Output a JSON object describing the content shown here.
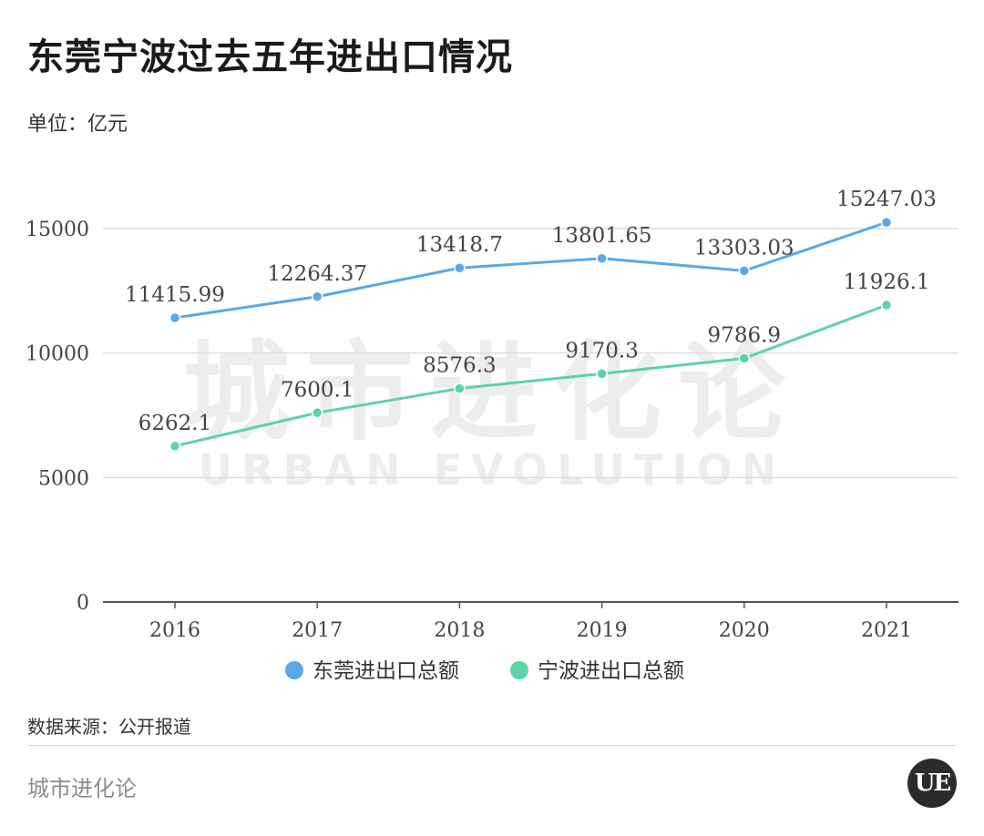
{
  "title": "东莞宁波过去五年进出口情况",
  "unit_label": "单位：亿元",
  "watermark": {
    "cn": "城市进化论",
    "en": "URBAN EVOLUTION"
  },
  "source_label": "数据来源：公开报道",
  "brand": "城市进化论",
  "logo_text": "UE",
  "colors": {
    "dongguan": "#5BA8E5",
    "ningbo": "#5DD3A6",
    "grid": "#dddddd",
    "axis": "#555555"
  },
  "chart_data": {
    "type": "line",
    "title": "东莞宁波过去五年进出口情况",
    "xlabel": "",
    "ylabel": "单位：亿元",
    "categories": [
      "2016",
      "2017",
      "2018",
      "2019",
      "2020",
      "2021"
    ],
    "ylim": [
      0,
      15000
    ],
    "yticks": [
      "0",
      "5000",
      "10000",
      "15000"
    ],
    "grid": true,
    "legend_position": "bottom",
    "series": [
      {
        "name": "东莞进出口总额",
        "color": "#5BA8E5",
        "values": [
          11415.99,
          12264.37,
          13418.7,
          13801.65,
          13303.03,
          15247.03
        ],
        "labels": [
          "11415.99",
          "12264.37",
          "13418.7",
          "13801.65",
          "13303.03",
          "15247.03"
        ]
      },
      {
        "name": "宁波进出口总额",
        "color": "#5DD3A6",
        "values": [
          6262.1,
          7600.1,
          8576.3,
          9170.3,
          9786.9,
          11926.1
        ],
        "labels": [
          "6262.1",
          "7600.1",
          "8576.3",
          "9170.3",
          "9786.9",
          "11926.1"
        ]
      }
    ]
  }
}
